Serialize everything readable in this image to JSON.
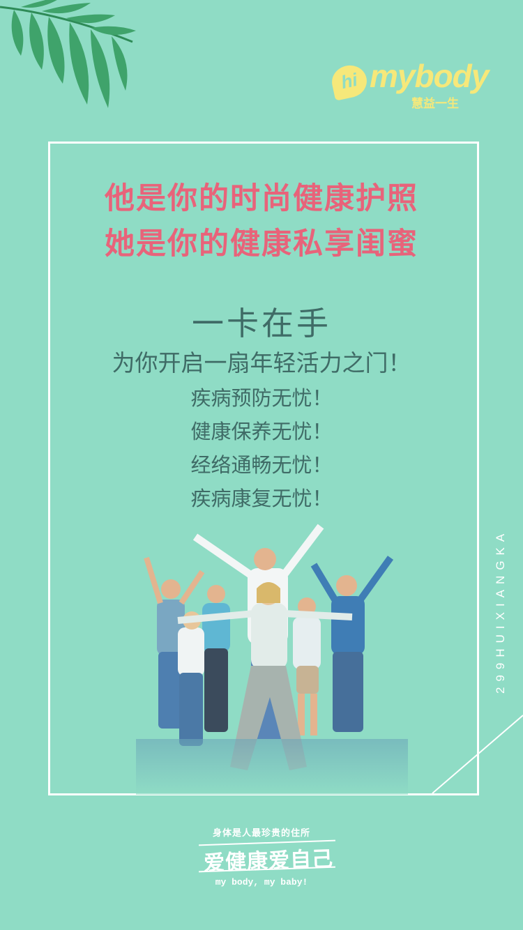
{
  "brand": {
    "hi": "hi",
    "name": "mybody",
    "tagline": "慧益一生"
  },
  "title": {
    "line1": "他是你的时尚健康护照",
    "line2": "她是你的健康私享闺蜜"
  },
  "headline": "一卡在手",
  "subline": "为你开启一扇年轻活力之门！",
  "benefits": [
    "疾病预防无忧！",
    "健康保养无忧！",
    "经络通畅无忧！",
    "疾病康复无忧！"
  ],
  "vertical_text": "299HUIXIANGKA",
  "footer": {
    "top": "身体是人最珍贵的住所",
    "main": "爱健康爱自己",
    "bottom": "my body, my baby!"
  },
  "colors": {
    "background": "#8fdcc5",
    "title": "#e8637a",
    "body_text": "#3f6b66",
    "logo": "#f6e87a",
    "frame": "#ffffff"
  },
  "icons": [
    "palm-leaf-icon",
    "hi-speech-bubble-icon"
  ]
}
